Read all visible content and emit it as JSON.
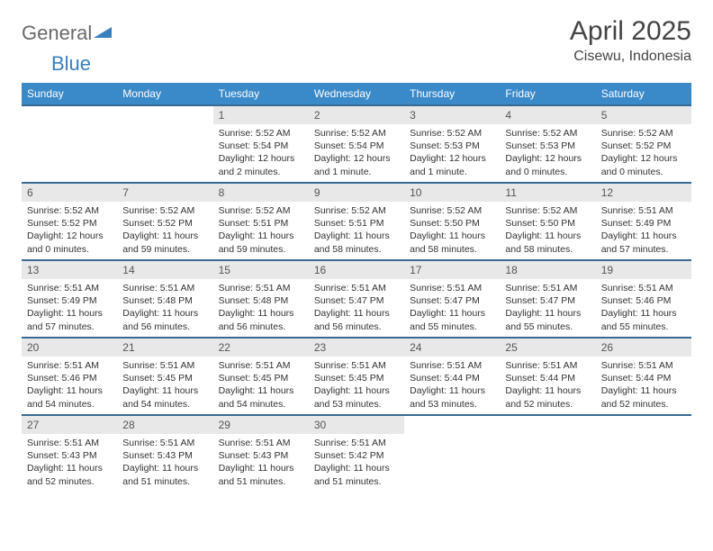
{
  "brand": {
    "part1": "General",
    "part2": "Blue",
    "tri_color": "#3a7fbf"
  },
  "header": {
    "month_title": "April 2025",
    "location": "Cisewu, Indonesia"
  },
  "colors": {
    "header_bg": "#3a89c9",
    "header_text": "#ffffff",
    "row_border": "#3a6a94",
    "daynum_bg": "#e8e8e8"
  },
  "weekdays": [
    "Sunday",
    "Monday",
    "Tuesday",
    "Wednesday",
    "Thursday",
    "Friday",
    "Saturday"
  ],
  "weeks": [
    [
      null,
      null,
      {
        "n": "1",
        "sr": "Sunrise: 5:52 AM",
        "ss": "Sunset: 5:54 PM",
        "dl": "Daylight: 12 hours and 2 minutes."
      },
      {
        "n": "2",
        "sr": "Sunrise: 5:52 AM",
        "ss": "Sunset: 5:54 PM",
        "dl": "Daylight: 12 hours and 1 minute."
      },
      {
        "n": "3",
        "sr": "Sunrise: 5:52 AM",
        "ss": "Sunset: 5:53 PM",
        "dl": "Daylight: 12 hours and 1 minute."
      },
      {
        "n": "4",
        "sr": "Sunrise: 5:52 AM",
        "ss": "Sunset: 5:53 PM",
        "dl": "Daylight: 12 hours and 0 minutes."
      },
      {
        "n": "5",
        "sr": "Sunrise: 5:52 AM",
        "ss": "Sunset: 5:52 PM",
        "dl": "Daylight: 12 hours and 0 minutes."
      }
    ],
    [
      {
        "n": "6",
        "sr": "Sunrise: 5:52 AM",
        "ss": "Sunset: 5:52 PM",
        "dl": "Daylight: 12 hours and 0 minutes."
      },
      {
        "n": "7",
        "sr": "Sunrise: 5:52 AM",
        "ss": "Sunset: 5:52 PM",
        "dl": "Daylight: 11 hours and 59 minutes."
      },
      {
        "n": "8",
        "sr": "Sunrise: 5:52 AM",
        "ss": "Sunset: 5:51 PM",
        "dl": "Daylight: 11 hours and 59 minutes."
      },
      {
        "n": "9",
        "sr": "Sunrise: 5:52 AM",
        "ss": "Sunset: 5:51 PM",
        "dl": "Daylight: 11 hours and 58 minutes."
      },
      {
        "n": "10",
        "sr": "Sunrise: 5:52 AM",
        "ss": "Sunset: 5:50 PM",
        "dl": "Daylight: 11 hours and 58 minutes."
      },
      {
        "n": "11",
        "sr": "Sunrise: 5:52 AM",
        "ss": "Sunset: 5:50 PM",
        "dl": "Daylight: 11 hours and 58 minutes."
      },
      {
        "n": "12",
        "sr": "Sunrise: 5:51 AM",
        "ss": "Sunset: 5:49 PM",
        "dl": "Daylight: 11 hours and 57 minutes."
      }
    ],
    [
      {
        "n": "13",
        "sr": "Sunrise: 5:51 AM",
        "ss": "Sunset: 5:49 PM",
        "dl": "Daylight: 11 hours and 57 minutes."
      },
      {
        "n": "14",
        "sr": "Sunrise: 5:51 AM",
        "ss": "Sunset: 5:48 PM",
        "dl": "Daylight: 11 hours and 56 minutes."
      },
      {
        "n": "15",
        "sr": "Sunrise: 5:51 AM",
        "ss": "Sunset: 5:48 PM",
        "dl": "Daylight: 11 hours and 56 minutes."
      },
      {
        "n": "16",
        "sr": "Sunrise: 5:51 AM",
        "ss": "Sunset: 5:47 PM",
        "dl": "Daylight: 11 hours and 56 minutes."
      },
      {
        "n": "17",
        "sr": "Sunrise: 5:51 AM",
        "ss": "Sunset: 5:47 PM",
        "dl": "Daylight: 11 hours and 55 minutes."
      },
      {
        "n": "18",
        "sr": "Sunrise: 5:51 AM",
        "ss": "Sunset: 5:47 PM",
        "dl": "Daylight: 11 hours and 55 minutes."
      },
      {
        "n": "19",
        "sr": "Sunrise: 5:51 AM",
        "ss": "Sunset: 5:46 PM",
        "dl": "Daylight: 11 hours and 55 minutes."
      }
    ],
    [
      {
        "n": "20",
        "sr": "Sunrise: 5:51 AM",
        "ss": "Sunset: 5:46 PM",
        "dl": "Daylight: 11 hours and 54 minutes."
      },
      {
        "n": "21",
        "sr": "Sunrise: 5:51 AM",
        "ss": "Sunset: 5:45 PM",
        "dl": "Daylight: 11 hours and 54 minutes."
      },
      {
        "n": "22",
        "sr": "Sunrise: 5:51 AM",
        "ss": "Sunset: 5:45 PM",
        "dl": "Daylight: 11 hours and 54 minutes."
      },
      {
        "n": "23",
        "sr": "Sunrise: 5:51 AM",
        "ss": "Sunset: 5:45 PM",
        "dl": "Daylight: 11 hours and 53 minutes."
      },
      {
        "n": "24",
        "sr": "Sunrise: 5:51 AM",
        "ss": "Sunset: 5:44 PM",
        "dl": "Daylight: 11 hours and 53 minutes."
      },
      {
        "n": "25",
        "sr": "Sunrise: 5:51 AM",
        "ss": "Sunset: 5:44 PM",
        "dl": "Daylight: 11 hours and 52 minutes."
      },
      {
        "n": "26",
        "sr": "Sunrise: 5:51 AM",
        "ss": "Sunset: 5:44 PM",
        "dl": "Daylight: 11 hours and 52 minutes."
      }
    ],
    [
      {
        "n": "27",
        "sr": "Sunrise: 5:51 AM",
        "ss": "Sunset: 5:43 PM",
        "dl": "Daylight: 11 hours and 52 minutes."
      },
      {
        "n": "28",
        "sr": "Sunrise: 5:51 AM",
        "ss": "Sunset: 5:43 PM",
        "dl": "Daylight: 11 hours and 51 minutes."
      },
      {
        "n": "29",
        "sr": "Sunrise: 5:51 AM",
        "ss": "Sunset: 5:43 PM",
        "dl": "Daylight: 11 hours and 51 minutes."
      },
      {
        "n": "30",
        "sr": "Sunrise: 5:51 AM",
        "ss": "Sunset: 5:42 PM",
        "dl": "Daylight: 11 hours and 51 minutes."
      },
      null,
      null,
      null
    ]
  ]
}
